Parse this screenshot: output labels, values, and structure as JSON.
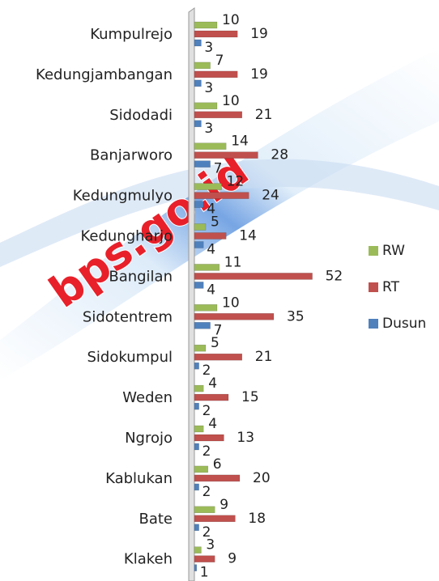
{
  "chart_data": {
    "type": "bar",
    "orientation": "horizontal",
    "watermark": "bps.go.id",
    "categories": [
      "Kumpulrejo",
      "Kedungjambangan",
      "Sidodadi",
      "Banjarworo",
      "Kedungmulyo",
      "Kedungharjo",
      "Bangilan",
      "Sidotentrem",
      "Sidokumpul",
      "Weden",
      "Ngrojo",
      "Kablukan",
      "Bate",
      "Klakeh"
    ],
    "series": [
      {
        "name": "RW",
        "color": "#9bbb59",
        "values": [
          10,
          7,
          10,
          14,
          12,
          5,
          11,
          10,
          5,
          4,
          4,
          6,
          9,
          3
        ]
      },
      {
        "name": "RT",
        "color": "#c0504d",
        "values": [
          19,
          19,
          21,
          28,
          24,
          14,
          52,
          35,
          21,
          15,
          13,
          20,
          18,
          9
        ]
      },
      {
        "name": "Dusun",
        "color": "#4f81bd",
        "values": [
          3,
          3,
          3,
          7,
          4,
          4,
          4,
          7,
          2,
          2,
          2,
          2,
          2,
          1
        ]
      }
    ],
    "xlim": [
      0,
      60
    ],
    "legend": "right",
    "grid": false
  }
}
